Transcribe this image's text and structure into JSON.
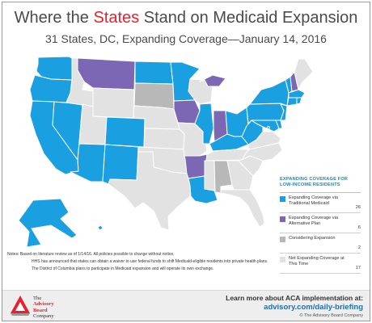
{
  "header": {
    "title_pre": "Where the ",
    "title_highlight": "States",
    "title_post": " Stand on Medicaid Expansion",
    "subtitle": "31 States, DC, Expanding Coverage—January 14, 2016"
  },
  "colors": {
    "traditional": "#1a9fe0",
    "alternative": "#7b67b3",
    "considering": "#b8b8b8",
    "not_expanding": "#e2e2e2",
    "highlight": "#e8212e",
    "border": "#ffffff"
  },
  "legend": {
    "title": "EXPANDING COVERAGE FOR LOW-INCOME RESIDENTS",
    "items": [
      {
        "key": "traditional",
        "label": "Expanding Coverage via Traditional Medicaid",
        "count": "26"
      },
      {
        "key": "alternative",
        "label": "Expanding Coverage via Alternative Plan",
        "count": "6"
      },
      {
        "key": "considering",
        "label": "Considering Expansion",
        "count": "2"
      },
      {
        "key": "not_expanding",
        "label": "Not Expanding Coverage at This Time",
        "count": "17"
      }
    ]
  },
  "map": {
    "status_by_state": {
      "WA": "traditional",
      "OR": "traditional",
      "CA": "traditional",
      "NV": "traditional",
      "AZ": "traditional",
      "CO": "traditional",
      "NM": "traditional",
      "ND": "traditional",
      "MN": "traditional",
      "IL": "traditional",
      "KY": "traditional",
      "OH": "traditional",
      "WV": "traditional",
      "MD": "traditional",
      "DE": "traditional",
      "NJ": "traditional",
      "NY": "traditional",
      "CT": "traditional",
      "RI": "traditional",
      "MA": "traditional",
      "VT": "traditional",
      "AK": "traditional",
      "HI": "traditional",
      "LA": "traditional",
      "DC": "traditional",
      "MT": "alternative",
      "IA": "alternative",
      "MI": "alternative",
      "IN": "alternative",
      "AR": "alternative",
      "PA": "traditional",
      "NH": "alternative",
      "SD": "considering",
      "AL": "considering"
    }
  },
  "notes": [
    "Notes: Based on literature review as of 1/14/16. All policies possible to change without notice.",
    "HHS has announced that states can obtain a waiver to use federal funds to shift Medicaid-eligible residents into private health plans.",
    "The District of Columbia plans to participate in Medicaid expansion and will operate its own exchange."
  ],
  "footer": {
    "logo_line1": "The",
    "logo_line2": "Advisory",
    "logo_line3": "Board",
    "logo_line4": "Company",
    "promo_line1": "Learn more about ACA implementation at:",
    "promo_line2": "advisory.com/daily-briefing",
    "promo_line3": "© The Advisory Board Company"
  }
}
